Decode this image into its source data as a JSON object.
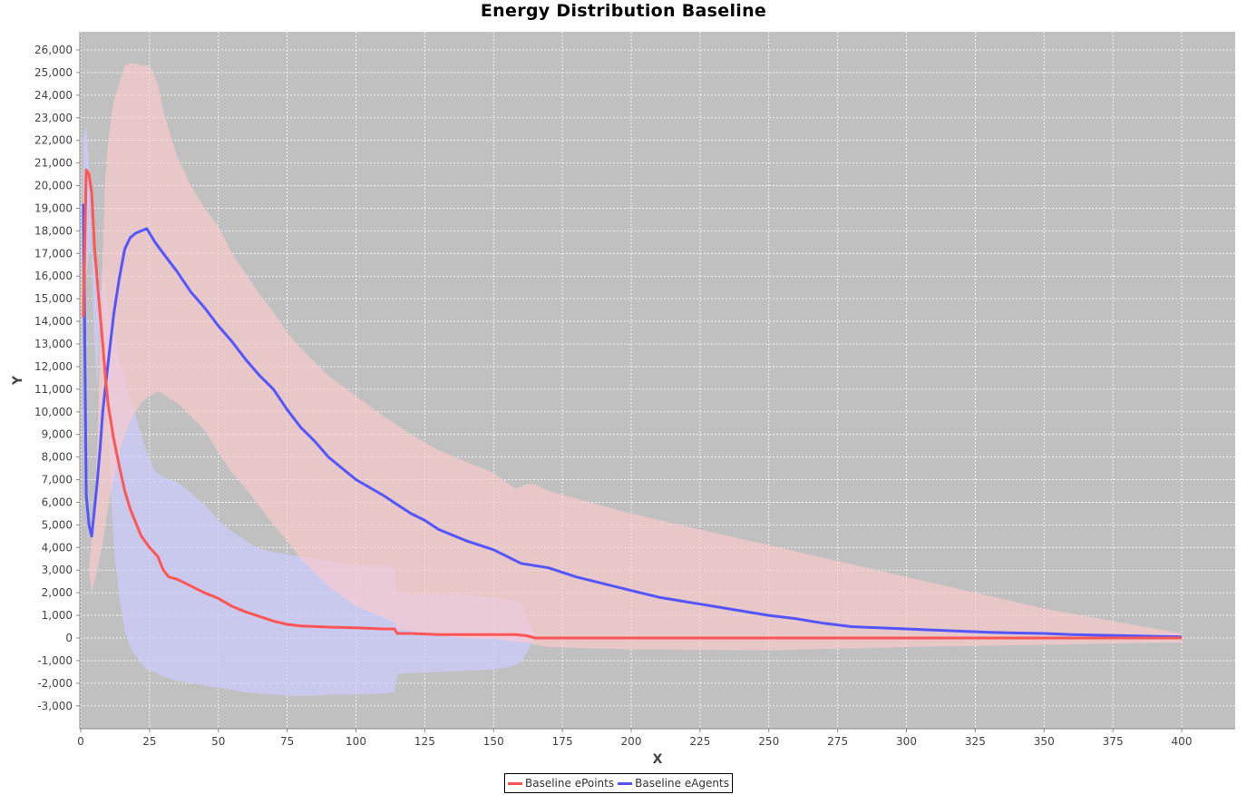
{
  "chart_data": {
    "type": "line",
    "title": "Energy Distribution Baseline",
    "xlabel": "X",
    "ylabel": "Y",
    "xlim": [
      0,
      405
    ],
    "ylim": [
      -4000,
      26700
    ],
    "x_ticks": [
      0,
      25,
      50,
      75,
      100,
      125,
      150,
      175,
      200,
      225,
      250,
      275,
      300,
      325,
      350,
      375,
      400
    ],
    "y_ticks": [
      -3000,
      -2000,
      -1000,
      0,
      1000,
      2000,
      3000,
      4000,
      5000,
      6000,
      7000,
      8000,
      9000,
      10000,
      11000,
      12000,
      13000,
      14000,
      15000,
      16000,
      17000,
      18000,
      19000,
      20000,
      21000,
      22000,
      23000,
      24000,
      25000,
      26000
    ],
    "grid": true,
    "legend_position": "bottom",
    "plot_background": "#c0c0c0",
    "series": [
      {
        "name": "Baseline ePoints",
        "color": "#ff5555",
        "band_color": "#ffcccc",
        "x": [
          1,
          2,
          3,
          4,
          5,
          6,
          7,
          8,
          9,
          10,
          12,
          14,
          16,
          18,
          20,
          22,
          25,
          28,
          30,
          32,
          35,
          40,
          45,
          50,
          55,
          60,
          65,
          70,
          75,
          80,
          90,
          100,
          110,
          114,
          115,
          120,
          130,
          140,
          150,
          158,
          162,
          165,
          170,
          200,
          250,
          300,
          350,
          400
        ],
        "values": [
          14200,
          20700,
          20500,
          19700,
          17300,
          15800,
          14400,
          13000,
          11500,
          10300,
          8800,
          7600,
          6500,
          5700,
          5100,
          4500,
          4000,
          3600,
          3000,
          2700,
          2600,
          2300,
          2000,
          1750,
          1400,
          1150,
          950,
          750,
          600,
          530,
          480,
          450,
          400,
          400,
          200,
          200,
          150,
          150,
          150,
          150,
          100,
          0,
          0,
          0,
          0,
          0,
          0,
          0
        ],
        "band_upper": [
          10000,
          7000,
          3000,
          4500,
          6000,
          8500,
          13000,
          17000,
          20500,
          22000,
          23800,
          24500,
          25300,
          25400,
          25400,
          25300,
          25300,
          24500,
          23300,
          22500,
          21300,
          20000,
          19000,
          18200,
          17000,
          16100,
          15200,
          14400,
          13500,
          12800,
          11600,
          10700,
          9800,
          9500,
          9400,
          9000,
          8300,
          7800,
          7300,
          6600,
          6800,
          6800,
          6500,
          5500,
          4100,
          2700,
          1300,
          200
        ],
        "band_lower": [
          10000,
          6000,
          3000,
          2000,
          2500,
          3000,
          3600,
          4200,
          5000,
          5800,
          7000,
          8200,
          9000,
          9600,
          10000,
          10400,
          10700,
          10900,
          10800,
          10600,
          10400,
          9800,
          9200,
          8200,
          7300,
          6600,
          5800,
          5000,
          4300,
          3500,
          2300,
          1400,
          900,
          700,
          400,
          300,
          100,
          0,
          -50,
          -150,
          -200,
          -300,
          -400,
          -500,
          -550,
          -400,
          -300,
          -200
        ]
      },
      {
        "name": "Baseline eAgents",
        "color": "#5555ff",
        "band_color": "#ccccff",
        "x": [
          1,
          2,
          3,
          4,
          5,
          6,
          7,
          8,
          10,
          12,
          14,
          16,
          18,
          20,
          22,
          24,
          27,
          30,
          35,
          40,
          45,
          50,
          55,
          60,
          65,
          70,
          75,
          80,
          85,
          90,
          95,
          100,
          110,
          115,
          120,
          125,
          130,
          140,
          150,
          155,
          160,
          170,
          180,
          190,
          200,
          210,
          220,
          230,
          240,
          250,
          260,
          270,
          280,
          290,
          300,
          310,
          320,
          330,
          340,
          350,
          360,
          380,
          400
        ],
        "values": [
          19200,
          6300,
          5000,
          4500,
          5700,
          6900,
          8300,
          10000,
          12200,
          14300,
          15900,
          17200,
          17700,
          17900,
          18000,
          18100,
          17500,
          17000,
          16200,
          15300,
          14600,
          13800,
          13100,
          12300,
          11600,
          11000,
          10100,
          9300,
          8700,
          8000,
          7500,
          7000,
          6300,
          5900,
          5500,
          5200,
          4800,
          4300,
          3900,
          3600,
          3300,
          3100,
          2700,
          2400,
          2100,
          1800,
          1600,
          1400,
          1200,
          1000,
          850,
          650,
          500,
          450,
          400,
          350,
          300,
          250,
          220,
          200,
          150,
          100,
          50
        ],
        "band_upper": [
          22000,
          22700,
          21000,
          17000,
          13000,
          11000,
          14000,
          16500,
          14500,
          13500,
          12500,
          11500,
          10500,
          9800,
          9000,
          8200,
          7400,
          7100,
          6900,
          6400,
          5900,
          5200,
          4700,
          4300,
          3950,
          3800,
          3700,
          3600,
          3500,
          3400,
          3300,
          3250,
          3200,
          3100,
          2000,
          1950,
          1950,
          1900,
          1800,
          1700,
          1600,
          0
        ],
        "band_x": [
          1,
          2,
          3,
          4,
          5,
          6,
          7,
          8,
          10,
          12,
          14,
          16,
          18,
          20,
          22,
          24,
          27,
          30,
          35,
          40,
          45,
          50,
          55,
          60,
          65,
          70,
          75,
          80,
          85,
          90,
          95,
          100,
          110,
          114,
          115,
          120,
          130,
          140,
          150,
          155,
          160,
          165
        ],
        "band_lower": [
          16000,
          16000,
          17000,
          17000,
          16500,
          16000,
          15500,
          15000,
          9000,
          4000,
          1800,
          300,
          -400,
          -800,
          -1100,
          -1400,
          -1500,
          -1700,
          -1900,
          -2000,
          -2100,
          -2200,
          -2300,
          -2400,
          -2450,
          -2500,
          -2550,
          -2550,
          -2550,
          -2500,
          -2500,
          -2500,
          -2450,
          -2400,
          -1600,
          -1550,
          -1500,
          -1450,
          -1400,
          -1300,
          -1100,
          0
        ]
      }
    ]
  }
}
